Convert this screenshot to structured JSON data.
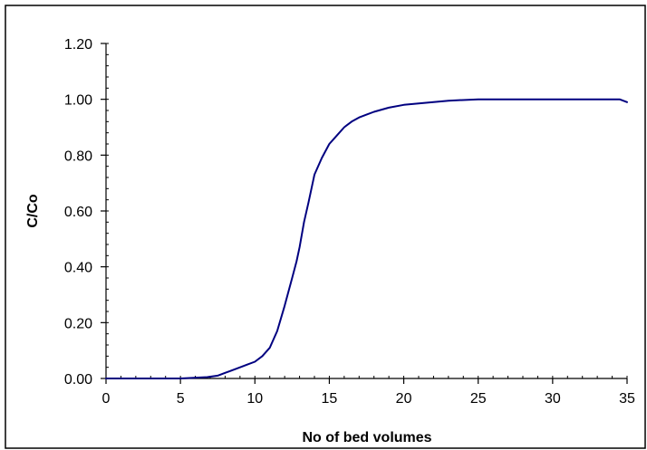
{
  "chart_data": {
    "type": "line",
    "title": "",
    "xlabel": "No of bed volumes",
    "ylabel": "C/Co",
    "xlim": [
      0,
      35
    ],
    "ylim": [
      0,
      1.2
    ],
    "x_ticks": [
      0,
      5,
      10,
      15,
      20,
      25,
      30,
      35
    ],
    "x_tick_labels": [
      "0",
      "5",
      "10",
      "15",
      "20",
      "25",
      "30",
      "35"
    ],
    "y_ticks": [
      0,
      0.2,
      0.4,
      0.6,
      0.8,
      1.0,
      1.2
    ],
    "y_tick_labels": [
      "0.00",
      "0.20",
      "0.40",
      "0.60",
      "0.80",
      "1.00",
      "1.20"
    ],
    "grid": false,
    "legend": "none",
    "series": [
      {
        "line_color": "#000080",
        "x": [
          0,
          5,
          6.8,
          7.5,
          8,
          8.5,
          9,
          9.5,
          10,
          10.5,
          11,
          11.5,
          12,
          12.5,
          12.8,
          13,
          13.3,
          13.6,
          14,
          14.5,
          15,
          15.5,
          16,
          16.5,
          17,
          17.5,
          18,
          19,
          20,
          21,
          22,
          23,
          25,
          30,
          34.5,
          35
        ],
        "y": [
          0,
          0,
          0.005,
          0.01,
          0.02,
          0.03,
          0.04,
          0.05,
          0.06,
          0.08,
          0.11,
          0.17,
          0.26,
          0.36,
          0.42,
          0.47,
          0.56,
          0.63,
          0.73,
          0.79,
          0.84,
          0.87,
          0.9,
          0.92,
          0.935,
          0.945,
          0.955,
          0.97,
          0.98,
          0.985,
          0.99,
          0.995,
          1.0,
          1.0,
          1.0,
          0.99
        ]
      }
    ]
  }
}
